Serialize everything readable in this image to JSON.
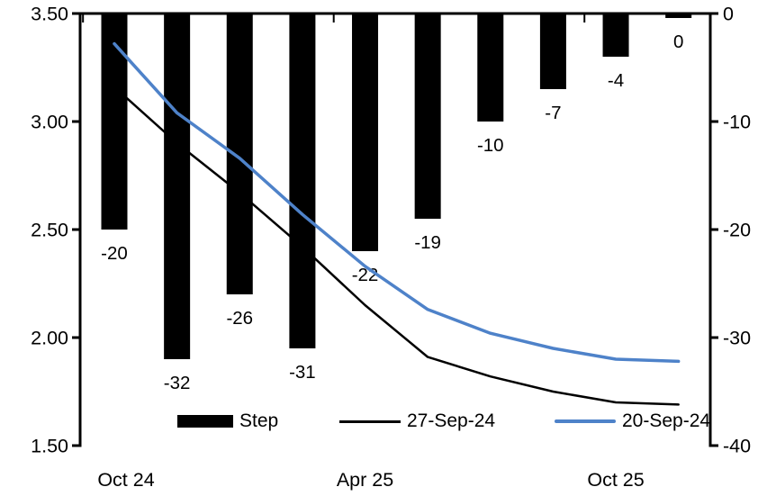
{
  "chart_data": {
    "type": "bar",
    "subtype": "bar+line combo, bars on inverted right axis, lines on left axis",
    "categories": [
      "Oct 24",
      "",
      "",
      "",
      "Apr 25",
      "",
      "",
      "",
      "Oct 25",
      ""
    ],
    "series": [
      {
        "name": "Step",
        "type": "bar",
        "axis": "right",
        "color": "#000000",
        "values": [
          -20,
          -32,
          -26,
          -31,
          -22,
          -19,
          -10,
          -7,
          -4,
          0
        ],
        "data_labels": [
          "-20",
          "-32",
          "-26",
          "-31",
          "-22",
          "-19",
          "-10",
          "-7",
          "-4",
          "0"
        ]
      },
      {
        "name": "27-Sep-24",
        "type": "line",
        "axis": "left",
        "color": "#000000",
        "stroke_width": 2.5,
        "values": [
          3.16,
          2.9,
          2.67,
          2.42,
          2.15,
          1.91,
          1.82,
          1.75,
          1.7,
          1.69
        ]
      },
      {
        "name": "20-Sep-24",
        "type": "line",
        "axis": "left",
        "color": "#4E82C9",
        "stroke_width": 3.5,
        "values": [
          3.36,
          3.04,
          2.83,
          2.57,
          2.33,
          2.13,
          2.02,
          1.95,
          1.9,
          1.89
        ]
      }
    ],
    "left_axis": {
      "range": [
        1.5,
        3.5
      ],
      "ticks": [
        "3.50",
        "3.00",
        "2.50",
        "2.00",
        "1.50"
      ],
      "values": [
        3.5,
        3.0,
        2.5,
        2.0,
        1.5
      ]
    },
    "right_axis": {
      "range": [
        -40,
        0
      ],
      "ticks": [
        "0",
        "-10",
        "-20",
        "-30",
        "-40"
      ],
      "values": [
        0,
        -10,
        -20,
        -30,
        -40
      ]
    },
    "x_axis": {
      "labels": [
        {
          "text": "Oct 24",
          "index": 0
        },
        {
          "text": "Apr 25",
          "index": 4
        },
        {
          "text": "Oct 25",
          "index": 8
        }
      ]
    },
    "title": "",
    "grid": false,
    "legend_position": "bottom"
  },
  "legend": {
    "items": [
      {
        "label": "Step",
        "type": "bar",
        "color": "#000000"
      },
      {
        "label": "27-Sep-24",
        "type": "line-thin",
        "color": "#000000"
      },
      {
        "label": "20-Sep-24",
        "type": "line-thick",
        "color": "#4E82C9"
      }
    ]
  },
  "colors": {
    "background": "#ffffff",
    "axis": "#000000",
    "text": "#000000",
    "accent_blue": "#4E82C9"
  }
}
